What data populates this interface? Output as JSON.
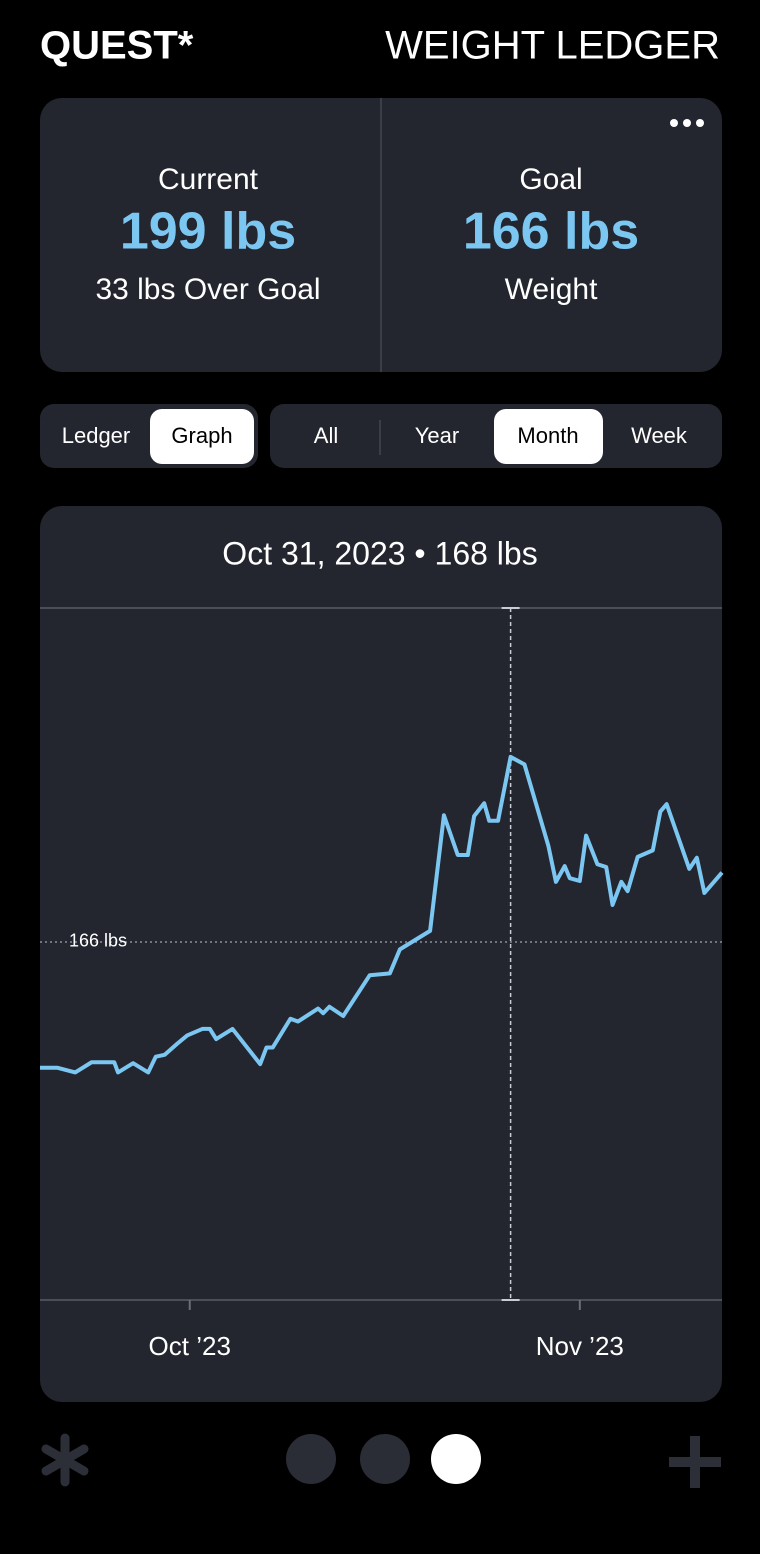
{
  "header": {
    "app": "QUEST*",
    "title": "WEIGHT LEDGER"
  },
  "summary": {
    "current_label": "Current",
    "current_value": "199 lbs",
    "current_note": "33 lbs Over Goal",
    "goal_label": "Goal",
    "goal_value": "166 lbs",
    "goal_note": "Weight"
  },
  "view_tabs": [
    "Ledger",
    "Graph"
  ],
  "range_tabs": [
    "All",
    "Year",
    "Month",
    "Week"
  ],
  "chart_data": {
    "type": "line",
    "title": "Oct 31, 2023 • 168 lbs",
    "color": "#7cc7f2",
    "x": [
      -11.9,
      -10.5,
      -9.1,
      -7.8,
      -6.0,
      -5.7,
      -4.5,
      -3.3,
      -2.7,
      -2.0,
      -1.0,
      -0.2,
      1.0,
      1.6,
      2.1,
      3.4,
      5.6,
      6.1,
      6.6,
      8.0,
      8.6,
      10.2,
      10.6,
      11.1,
      12.2,
      14.3,
      15.9,
      16.7,
      19.1,
      20.2,
      21.3,
      22.1,
      22.6,
      23.4,
      23.8,
      24.5,
      25.5,
      26.6,
      28.5,
      29.1,
      29.8,
      30.2,
      31.0,
      31.5,
      32.4,
      33.1,
      33.6,
      34.3,
      34.8,
      35.6,
      36.8,
      37.4,
      37.9,
      39.7,
      40.3,
      40.9,
      42.3
    ],
    "values": [
      164.64,
      164.64,
      164.59,
      164.7,
      164.7,
      164.59,
      164.69,
      164.59,
      164.76,
      164.78,
      164.9,
      164.99,
      165.06,
      165.06,
      164.95,
      165.06,
      164.68,
      164.86,
      164.86,
      165.17,
      165.14,
      165.28,
      165.23,
      165.3,
      165.2,
      165.64,
      165.66,
      165.92,
      166.12,
      167.37,
      166.94,
      166.94,
      167.36,
      167.5,
      167.31,
      167.31,
      168.0,
      167.92,
      167.04,
      166.65,
      166.82,
      166.69,
      166.66,
      167.15,
      166.84,
      166.81,
      166.4,
      166.65,
      166.55,
      166.92,
      166.99,
      167.41,
      167.49,
      166.79,
      166.91,
      166.53,
      166.75
    ],
    "xlim": [
      -11.9,
      42.3
    ],
    "ylim": [
      162.13,
      169.61
    ],
    "xticks": [
      {
        "value": 0,
        "label": "Oct ’23"
      },
      {
        "value": 31,
        "label": "Nov ’23"
      }
    ],
    "reference_line": {
      "value": 166,
      "label": "166 lbs"
    },
    "crosshair_x": 25.5
  }
}
